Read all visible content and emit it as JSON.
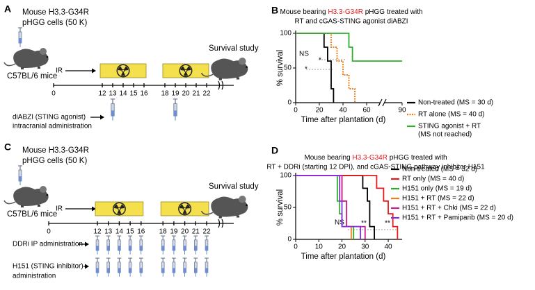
{
  "panels": {
    "a": {
      "letter": "A",
      "cells_line1": "Mouse H3.3-G34R",
      "cells_line2": "pHGG cells (50 K)",
      "mice": "C57BL/6 mice",
      "ir": "IR",
      "survival": "Survival study",
      "days": [
        0,
        12,
        13,
        14,
        15,
        16,
        18,
        19,
        20,
        21,
        22
      ],
      "treatment_line1": "diABZI (STING agonist)",
      "treatment_line2": "intracranial administration"
    },
    "c": {
      "letter": "C",
      "cells_line1": "Mouse H3.3-G34R",
      "cells_line2": "pHGG cells (50 K)",
      "mice": "C57BL/6 mice",
      "ir": "IR",
      "survival": "Survival study",
      "days": [
        0,
        12,
        13,
        14,
        15,
        16,
        18,
        19,
        20,
        21,
        22
      ],
      "treatment1": "DDRi IP administration",
      "treatment2_line1": "H151 (STING inhibitor)",
      "treatment2_line2": "administration"
    }
  },
  "chart_data": [
    {
      "type": "line",
      "letter": "B",
      "title_parts": [
        "Mouse bearing ",
        "H3.3-G34R",
        " pHGG treated with"
      ],
      "title_line2": "RT and cGAS-STING agonist diABZI",
      "highlight_color": "#e41a1c",
      "xlabel": "Time after plantation (d)",
      "ylabel": "% survival",
      "xlim": [
        0,
        90
      ],
      "ylim": [
        0,
        100
      ],
      "xticks": [
        0,
        20,
        40,
        60,
        90
      ],
      "yticks": [
        0,
        50,
        100
      ],
      "axis_break": true,
      "legend": "bottom-right",
      "annotations": [
        "NS",
        "*",
        "*"
      ],
      "series": [
        {
          "name": "Non-treated (MS = 30 d)",
          "color": "#000000",
          "line_style": "solid",
          "x": [
            0,
            24,
            24,
            27,
            27,
            30,
            30,
            32,
            32
          ],
          "values": [
            100,
            100,
            80,
            80,
            60,
            60,
            20,
            20,
            0
          ]
        },
        {
          "name": "RT alone (MS = 40 d)",
          "color": "#f07d1a",
          "line_style": "dotted",
          "x": [
            0,
            30,
            30,
            35,
            35,
            40,
            40,
            45,
            45,
            50,
            50
          ],
          "values": [
            100,
            100,
            80,
            80,
            60,
            60,
            40,
            40,
            20,
            20,
            0
          ]
        },
        {
          "name": "STING agonist + RT",
          "name_line2": "(MS not reached)",
          "color": "#2bb02b",
          "line_style": "solid",
          "x": [
            0,
            45,
            45,
            48,
            48,
            90
          ],
          "values": [
            100,
            100,
            80,
            80,
            60,
            60
          ]
        }
      ]
    },
    {
      "type": "line",
      "letter": "D",
      "title_parts": [
        "Mouse bearing ",
        "H3.3-G34R",
        " pHGG treated with"
      ],
      "title_line2": "RT + DDRi (starting 12 DPI), and cGAS-STING pathway inhibitor H151",
      "highlight_color": "#e41a1c",
      "xlabel": "Time after plantation (d)",
      "ylabel": "% survival",
      "xlim": [
        0,
        46
      ],
      "ylim": [
        0,
        100
      ],
      "xticks": [
        0,
        10,
        20,
        30,
        40
      ],
      "yticks": [
        0,
        50,
        100
      ],
      "axis_break": false,
      "legend": "right",
      "annotations": [
        "NS",
        "**",
        "**"
      ],
      "series": [
        {
          "name": "Non-treated (MS = 32 d)",
          "color": "#000000",
          "line_style": "solid",
          "x": [
            0,
            29,
            29,
            31,
            31,
            32,
            32,
            34,
            34
          ],
          "values": [
            100,
            100,
            80,
            80,
            60,
            60,
            20,
            20,
            0
          ]
        },
        {
          "name": "RT only (MS = 40 d)",
          "color": "#e41a1c",
          "line_style": "solid",
          "x": [
            0,
            35,
            35,
            38,
            38,
            40,
            40,
            42,
            42,
            44,
            44
          ],
          "values": [
            100,
            100,
            80,
            80,
            60,
            60,
            40,
            40,
            20,
            20,
            0
          ]
        },
        {
          "name": "H151 only (MS = 19 d)",
          "color": "#2bb02b",
          "line_style": "solid",
          "x": [
            0,
            18,
            18,
            19,
            19,
            20,
            20,
            25,
            25
          ],
          "values": [
            100,
            100,
            60,
            60,
            40,
            40,
            20,
            20,
            0
          ]
        },
        {
          "name": "H151 + RT (MS = 22 d)",
          "color": "#f07d1a",
          "line_style": "solid",
          "x": [
            0,
            20,
            20,
            22,
            22,
            24,
            24
          ],
          "values": [
            100,
            100,
            60,
            60,
            20,
            20,
            0
          ]
        },
        {
          "name": "H151 + RT + Chki (MS = 22 d)",
          "color": "#c2208f",
          "line_style": "solid",
          "x": [
            0,
            20,
            20,
            22,
            22,
            30,
            30
          ],
          "values": [
            100,
            100,
            60,
            60,
            20,
            20,
            0
          ]
        },
        {
          "name": "H151 + RT + Pamiparib (MS = 20 d)",
          "color": "#8a2be2",
          "line_style": "solid",
          "x": [
            0,
            19,
            19,
            20,
            20,
            28,
            28
          ],
          "values": [
            100,
            100,
            60,
            60,
            20,
            20,
            0
          ]
        }
      ]
    }
  ]
}
